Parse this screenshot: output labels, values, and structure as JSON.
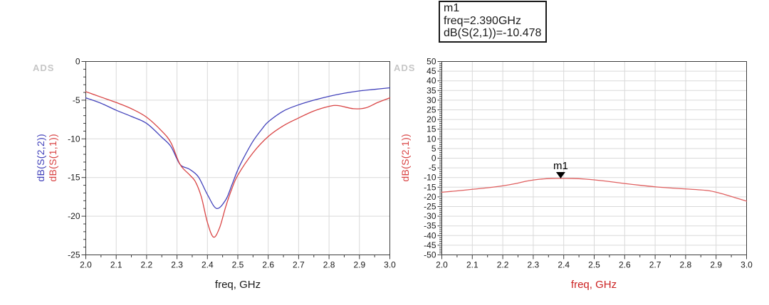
{
  "watermark": "ADS",
  "marker_readout": {
    "title": "m1",
    "freq_line": "freq=2.390GHz",
    "value_line": "dB(S(2,1))=-10.478"
  },
  "colors": {
    "s22_blue": "#4242bb",
    "s11_red": "#d94444",
    "s21_red": "#e06060",
    "grid": "#d9d9d9",
    "frame": "#3d3d3d",
    "tick_text": "#1a1a1a",
    "marker": "#000000"
  },
  "chart_data": [
    {
      "type": "line",
      "position": "left",
      "xlabel": "freq, GHz",
      "xlabel_color": "#1a1a1a",
      "ylabel_parts": [
        {
          "text": "dB(S(2,2))",
          "color_key": "s22_blue"
        },
        {
          "text": "dB(S(1,1))",
          "color_key": "s11_red"
        }
      ],
      "xlim": [
        2.0,
        3.0
      ],
      "ylim": [
        -25,
        0
      ],
      "x_tick_step": 0.1,
      "x_minor_step": 0.05,
      "y_tick_step": 5,
      "y_minor_step": 1,
      "grid": true,
      "legend_position": "none",
      "series": [
        {
          "name": "dB(S(2,2))",
          "color_key": "s22_blue",
          "points": [
            [
              2.0,
              -4.7
            ],
            [
              2.05,
              -5.4
            ],
            [
              2.1,
              -6.3
            ],
            [
              2.15,
              -7.1
            ],
            [
              2.2,
              -8.0
            ],
            [
              2.25,
              -9.8
            ],
            [
              2.28,
              -11.0
            ],
            [
              2.31,
              -13.3
            ],
            [
              2.34,
              -13.9
            ],
            [
              2.37,
              -14.9
            ],
            [
              2.4,
              -17.2
            ],
            [
              2.43,
              -19.0
            ],
            [
              2.46,
              -17.9
            ],
            [
              2.48,
              -16.0
            ],
            [
              2.5,
              -14.0
            ],
            [
              2.52,
              -12.4
            ],
            [
              2.55,
              -10.3
            ],
            [
              2.58,
              -8.7
            ],
            [
              2.6,
              -7.8
            ],
            [
              2.65,
              -6.4
            ],
            [
              2.7,
              -5.6
            ],
            [
              2.75,
              -5.0
            ],
            [
              2.8,
              -4.5
            ],
            [
              2.85,
              -4.1
            ],
            [
              2.9,
              -3.8
            ],
            [
              2.95,
              -3.6
            ],
            [
              3.0,
              -3.4
            ]
          ]
        },
        {
          "name": "dB(S(1,1))",
          "color_key": "s11_red",
          "points": [
            [
              2.0,
              -3.9
            ],
            [
              2.05,
              -4.6
            ],
            [
              2.1,
              -5.3
            ],
            [
              2.15,
              -6.1
            ],
            [
              2.2,
              -7.2
            ],
            [
              2.25,
              -9.0
            ],
            [
              2.28,
              -10.5
            ],
            [
              2.31,
              -13.3
            ],
            [
              2.34,
              -14.6
            ],
            [
              2.36,
              -15.5
            ],
            [
              2.38,
              -17.5
            ],
            [
              2.4,
              -20.8
            ],
            [
              2.42,
              -22.7
            ],
            [
              2.44,
              -21.5
            ],
            [
              2.46,
              -18.8
            ],
            [
              2.48,
              -16.5
            ],
            [
              2.5,
              -14.7
            ],
            [
              2.55,
              -11.8
            ],
            [
              2.6,
              -9.7
            ],
            [
              2.65,
              -8.3
            ],
            [
              2.7,
              -7.3
            ],
            [
              2.75,
              -6.4
            ],
            [
              2.8,
              -5.8
            ],
            [
              2.83,
              -5.7
            ],
            [
              2.88,
              -6.1
            ],
            [
              2.92,
              -6.0
            ],
            [
              2.96,
              -5.3
            ],
            [
              3.0,
              -4.7
            ]
          ]
        }
      ]
    },
    {
      "type": "line",
      "position": "right",
      "xlabel": "freq, GHz",
      "xlabel_color": "#cc2222",
      "ylabel_parts": [
        {
          "text": "dB(S(2,1))",
          "color_key": "s11_red"
        }
      ],
      "xlim": [
        2.0,
        3.0
      ],
      "ylim": [
        -50,
        50
      ],
      "x_tick_step": 0.1,
      "x_minor_step": 0.05,
      "y_tick_step": 5,
      "y_minor_step": 1,
      "grid": true,
      "legend_position": "none",
      "series": [
        {
          "name": "dB(S(2,1))",
          "color_key": "s21_red",
          "points": [
            [
              2.0,
              -17.6
            ],
            [
              2.05,
              -16.9
            ],
            [
              2.1,
              -16.1
            ],
            [
              2.15,
              -15.3
            ],
            [
              2.2,
              -14.3
            ],
            [
              2.24,
              -13.2
            ],
            [
              2.28,
              -11.8
            ],
            [
              2.32,
              -10.9
            ],
            [
              2.36,
              -10.5
            ],
            [
              2.39,
              -10.478
            ],
            [
              2.43,
              -10.5
            ],
            [
              2.47,
              -10.8
            ],
            [
              2.5,
              -11.2
            ],
            [
              2.55,
              -12.1
            ],
            [
              2.6,
              -13.1
            ],
            [
              2.65,
              -14.0
            ],
            [
              2.7,
              -14.8
            ],
            [
              2.75,
              -15.4
            ],
            [
              2.8,
              -15.9
            ],
            [
              2.84,
              -16.3
            ],
            [
              2.88,
              -16.9
            ],
            [
              2.92,
              -18.4
            ],
            [
              2.96,
              -20.3
            ],
            [
              3.0,
              -22.2
            ]
          ]
        }
      ],
      "marker": {
        "label": "m1",
        "freq": 2.39,
        "value": -10.478
      }
    }
  ]
}
